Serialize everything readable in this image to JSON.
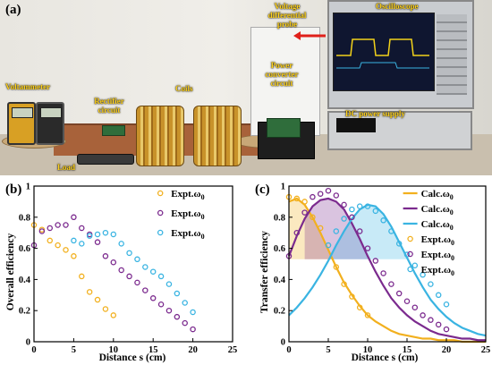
{
  "panel_a": {
    "tag": "(a)",
    "labels": {
      "voltammeter": "Voltammeter",
      "rectifier": "Rectifier circuit",
      "coils": "Coils",
      "load": "Load",
      "voltage_probe": "Voltage differential probe",
      "power_converter": "Power converter circuit",
      "oscilloscope": "Oscilloscope",
      "dc_supply": "DC power supply"
    },
    "colors": {
      "label": "#ffd21a",
      "arrow": "#e0201a"
    }
  },
  "chart_data": [
    {
      "panel": "(b)",
      "type": "scatter",
      "xlabel": "Distance s (cm)",
      "ylabel": "Overall efficiency",
      "xlim": [
        0,
        25
      ],
      "ylim": [
        0,
        1.0
      ],
      "xticks": [
        0,
        5,
        10,
        15,
        20,
        25
      ],
      "yticks": [
        0,
        0.2,
        0.4,
        0.6,
        0.8,
        1
      ],
      "ytick_labels": [
        "0",
        "0.2",
        "0.4",
        "0.6",
        "0.8",
        "1"
      ],
      "legend_position": "top-right",
      "series": [
        {
          "name": "Expt.ω0",
          "name_main": "Expt.ω",
          "name_sub": "0",
          "color": "#f2b01e",
          "x": [
            0,
            1,
            2,
            3,
            4,
            5,
            6,
            7,
            8,
            9,
            10
          ],
          "y": [
            0.75,
            0.72,
            0.65,
            0.62,
            0.59,
            0.55,
            0.42,
            0.32,
            0.27,
            0.21,
            0.17
          ]
        },
        {
          "name": "Expt.ω0",
          "name_main": "Expt.ω",
          "name_sub": "0",
          "color": "#7b2a8e",
          "x": [
            0,
            1,
            2,
            3,
            4,
            5,
            6,
            7,
            8,
            9,
            10,
            11,
            12,
            13,
            14,
            15,
            16,
            17,
            18,
            19,
            20
          ],
          "y": [
            0.62,
            0.71,
            0.73,
            0.75,
            0.75,
            0.8,
            0.73,
            0.69,
            0.64,
            0.55,
            0.51,
            0.46,
            0.42,
            0.38,
            0.33,
            0.28,
            0.24,
            0.2,
            0.16,
            0.12,
            0.08
          ]
        },
        {
          "name": "Expt.ω0",
          "name_main": "Expt.ω",
          "name_sub": "0",
          "color": "#3ab4e2",
          "x": [
            5,
            6,
            7,
            8,
            9,
            10,
            11,
            12,
            13,
            14,
            15,
            16,
            17,
            18,
            19,
            20
          ],
          "y": [
            0.65,
            0.63,
            0.68,
            0.69,
            0.7,
            0.69,
            0.63,
            0.57,
            0.53,
            0.48,
            0.45,
            0.42,
            0.37,
            0.31,
            0.25,
            0.19
          ]
        }
      ]
    },
    {
      "panel": "(c)",
      "type": "line",
      "xlabel": "Distance s (cm)",
      "ylabel": "Transfer efficiency",
      "xlim": [
        0,
        25
      ],
      "ylim": [
        0,
        1.0
      ],
      "xticks": [
        0,
        5,
        10,
        15,
        20,
        25
      ],
      "yticks": [
        0,
        0.2,
        0.4,
        0.6,
        0.8,
        1
      ],
      "ytick_labels": [
        "0",
        "0.2",
        "0.4",
        "0.6",
        "0.8",
        "1"
      ],
      "legend_position": "top-right",
      "band_level": 0.53,
      "curves": [
        {
          "name": "Calc.ω0",
          "name_main": "Calc.ω",
          "name_sub": "0",
          "color": "#f2b01e",
          "x": [
            0,
            1,
            2,
            3,
            4,
            5,
            6,
            7,
            8,
            9,
            10,
            11,
            12,
            13,
            14,
            15,
            16,
            17,
            18,
            19,
            20,
            21,
            22,
            23,
            24,
            25
          ],
          "y": [
            0.9,
            0.92,
            0.88,
            0.8,
            0.7,
            0.59,
            0.48,
            0.38,
            0.3,
            0.23,
            0.17,
            0.13,
            0.1,
            0.07,
            0.05,
            0.04,
            0.03,
            0.02,
            0.02,
            0.01,
            0.01,
            0.01,
            0.0,
            0.0,
            0.0,
            0.0
          ]
        },
        {
          "name": "Calc.ω0",
          "name_main": "Calc.ω",
          "name_sub": "0",
          "color": "#7b2a8e",
          "x": [
            0,
            1,
            2,
            3,
            4,
            5,
            6,
            7,
            8,
            9,
            10,
            11,
            12,
            13,
            14,
            15,
            16,
            17,
            18,
            19,
            20,
            21,
            22,
            23,
            24,
            25
          ],
          "y": [
            0.55,
            0.68,
            0.79,
            0.87,
            0.91,
            0.92,
            0.9,
            0.85,
            0.76,
            0.66,
            0.55,
            0.45,
            0.36,
            0.28,
            0.22,
            0.17,
            0.13,
            0.1,
            0.07,
            0.05,
            0.04,
            0.03,
            0.02,
            0.02,
            0.01,
            0.01
          ]
        },
        {
          "name": "Calc.ω0",
          "name_main": "Calc.ω",
          "name_sub": "0",
          "color": "#3ab4e2",
          "x": [
            0,
            1,
            2,
            3,
            4,
            5,
            6,
            7,
            8,
            9,
            10,
            11,
            12,
            13,
            14,
            15,
            16,
            17,
            18,
            19,
            20,
            21,
            22,
            23,
            24,
            25
          ],
          "y": [
            0.17,
            0.22,
            0.28,
            0.35,
            0.43,
            0.52,
            0.62,
            0.71,
            0.79,
            0.85,
            0.88,
            0.87,
            0.82,
            0.74,
            0.64,
            0.54,
            0.44,
            0.35,
            0.27,
            0.21,
            0.16,
            0.12,
            0.09,
            0.07,
            0.05,
            0.04
          ]
        }
      ],
      "series": [
        {
          "name": "Expt.ω0",
          "name_main": "Expt.ω",
          "name_sub": "0",
          "color": "#f2b01e",
          "x": [
            0,
            1,
            2,
            3,
            4,
            5,
            6,
            7,
            8,
            9,
            10
          ],
          "y": [
            0.93,
            0.92,
            0.9,
            0.8,
            0.73,
            0.62,
            0.48,
            0.37,
            0.29,
            0.22,
            0.17
          ]
        },
        {
          "name": "Expt.ω0",
          "name_main": "Expt.ω",
          "name_sub": "0",
          "color": "#7b2a8e",
          "x": [
            0,
            1,
            2,
            3,
            4,
            5,
            6,
            7,
            8,
            9,
            10,
            11,
            12,
            13,
            14,
            15,
            16,
            17,
            18,
            19,
            20
          ],
          "y": [
            0.55,
            0.7,
            0.83,
            0.93,
            0.95,
            0.97,
            0.94,
            0.88,
            0.8,
            0.71,
            0.6,
            0.52,
            0.44,
            0.37,
            0.31,
            0.26,
            0.22,
            0.17,
            0.14,
            0.11,
            0.08
          ]
        },
        {
          "name": "Expt.ω0",
          "name_main": "Expt.ω",
          "name_sub": "0",
          "color": "#3ab4e2",
          "x": [
            5,
            6,
            7,
            8,
            9,
            10,
            11,
            12,
            13,
            14,
            15,
            16,
            17,
            18,
            19,
            20
          ],
          "y": [
            0.62,
            0.71,
            0.79,
            0.85,
            0.87,
            0.87,
            0.84,
            0.78,
            0.71,
            0.63,
            0.56,
            0.49,
            0.43,
            0.37,
            0.3,
            0.24
          ]
        }
      ],
      "bands": [
        {
          "color": "#f2b01e",
          "x": [
            0,
            1,
            2,
            3,
            4,
            5,
            5.5
          ]
        },
        {
          "color": "#7b2a8e",
          "x": [
            2,
            3,
            4,
            5,
            6,
            7,
            8,
            9,
            10.0
          ]
        },
        {
          "color": "#3ab4e2",
          "x": [
            5,
            6,
            7,
            8,
            9,
            10,
            11,
            12,
            13,
            14,
            15.0
          ]
        }
      ]
    }
  ]
}
